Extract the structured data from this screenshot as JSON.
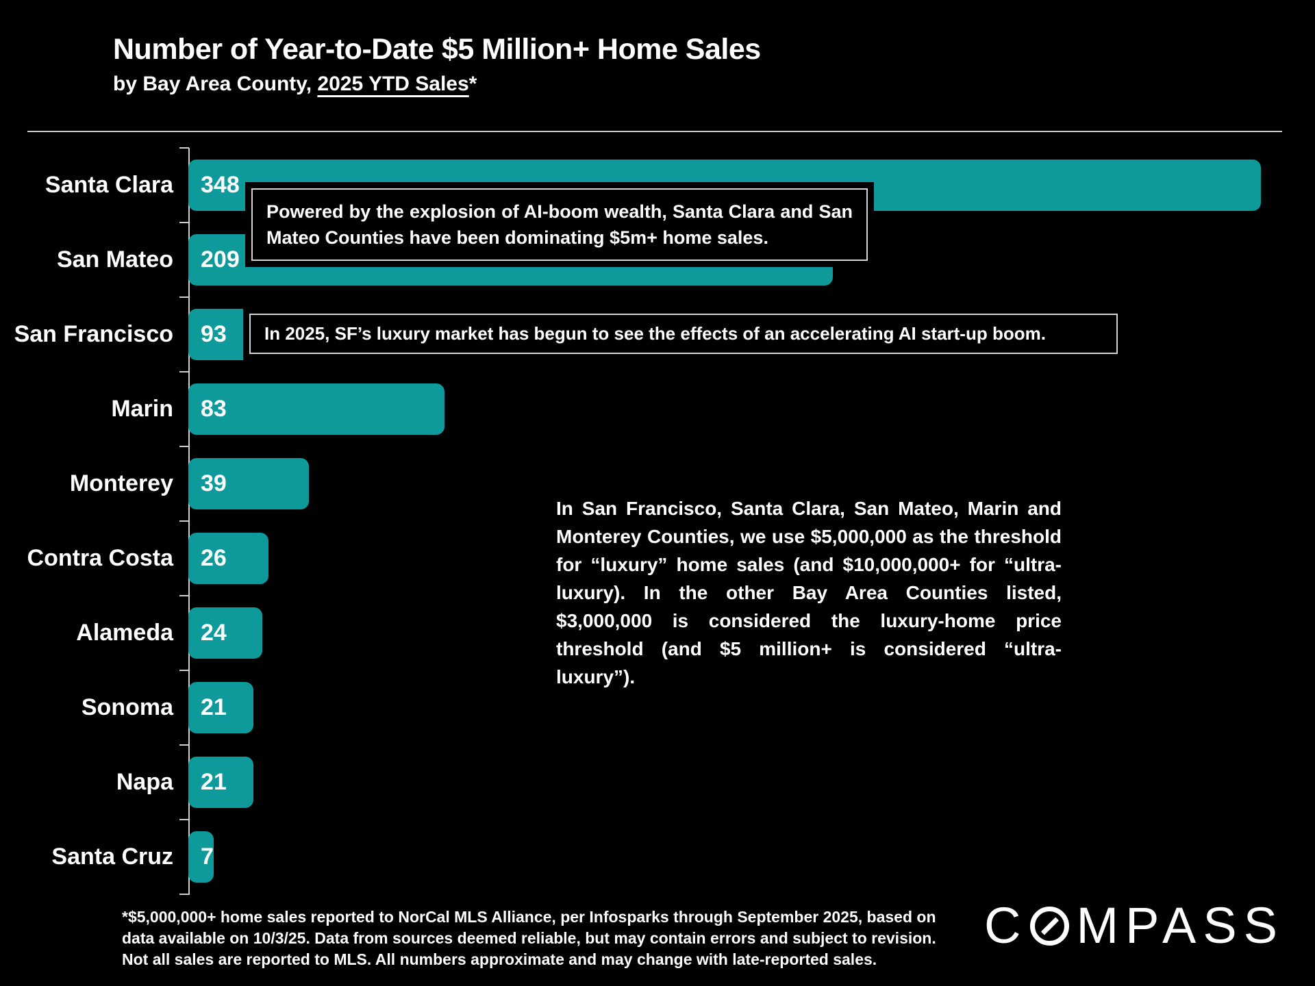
{
  "header": {
    "title": "Number of Year-to-Date $5 Million+ Home Sales",
    "subtitle_prefix": "by Bay Area County, ",
    "subtitle_underlined": "2025 YTD Sales",
    "subtitle_suffix": "*"
  },
  "chart_data": {
    "type": "bar",
    "orientation": "horizontal",
    "title": "Number of Year-to-Date $5 Million+ Home Sales",
    "subtitle": "by Bay Area County, 2025 YTD Sales*",
    "categories": [
      "Santa Clara",
      "San Mateo",
      "San Francisco",
      "Marin",
      "Monterey",
      "Contra Costa",
      "Alameda",
      "Sonoma",
      "Napa",
      "Santa Cruz"
    ],
    "values": [
      348,
      209,
      93,
      83,
      39,
      26,
      24,
      21,
      21,
      7
    ],
    "value_label_position": "inside-start",
    "bar_color": "#0E9A9B",
    "grid": false,
    "axis_color": "#cfcfcf",
    "xlabel": "",
    "ylabel": ""
  },
  "annotations": {
    "santa_clara_note": "Powered by the explosion of AI-boom wealth, Santa Clara and San Mateo Counties have been dominating $5m+ home sales.",
    "san_francisco_note": "In 2025, SF’s luxury market has begun to see the effects of an accelerating AI start-up boom.",
    "threshold_note": "In San Francisco, Santa Clara, San Mateo, Marin and Monterey Counties, we use $5,000,000 as the threshold for “luxury” home sales (and $10,000,000+ for “ultra-luxury). In the other Bay Area Counties listed, $3,000,000 is considered the luxury-home price threshold (and $5 million+ is considered “ultra-luxury”)."
  },
  "footnote_lines": [
    "*$5,000,000+ home sales reported to NorCal MLS Alliance, per Infosparks through September 2025, based on",
    "data available on 10/3/25. Data from sources deemed reliable, but may contain errors and subject to revision.",
    "Not all sales are reported to MLS. All numbers approximate and may change with late-reported sales."
  ],
  "logo": {
    "prefix": "C",
    "suffix": "MPASS"
  },
  "colors": {
    "background": "#000000",
    "bar_teal": "#0E9A9B",
    "text_white": "#ffffff",
    "box_border_gray": "#d4d4d4",
    "separator_gray": "#c9c9c9"
  }
}
